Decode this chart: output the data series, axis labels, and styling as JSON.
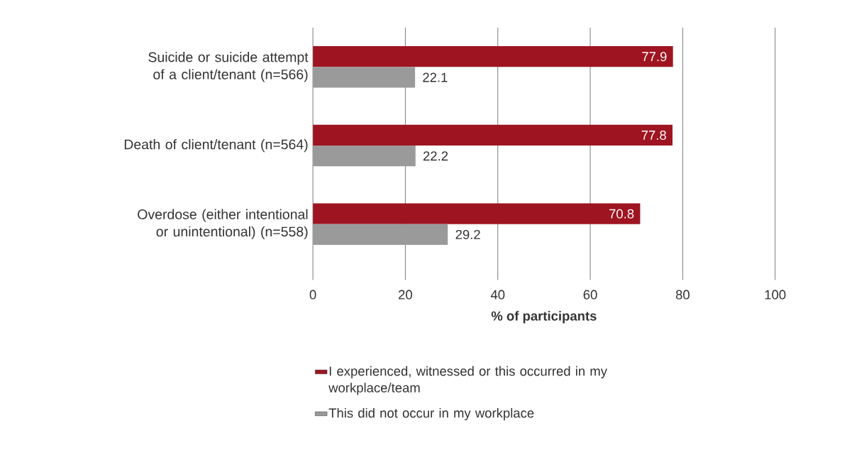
{
  "chart_data": {
    "type": "bar",
    "orientation": "horizontal",
    "xlabel": "% of participants",
    "categories": [
      "Suicide or suicide attempt of a client/tenant (n=566)",
      "Death of client/tenant (n=564)",
      "Overdose (either intentional or unintentional) (n=558)"
    ],
    "series": [
      {
        "name": "I experienced, witnessed or this occurred in my workplace/team",
        "color": "#9e1421",
        "values": [
          77.9,
          77.8,
          70.8
        ]
      },
      {
        "name": "This did not occur in my workplace",
        "color": "#9a9a9a",
        "values": [
          22.1,
          22.2,
          29.2
        ]
      }
    ],
    "xlim": [
      0,
      100
    ],
    "xticks": [
      0,
      20,
      40,
      60,
      80,
      100
    ],
    "grid": "x",
    "legend": "bottom",
    "data_labels": true
  }
}
